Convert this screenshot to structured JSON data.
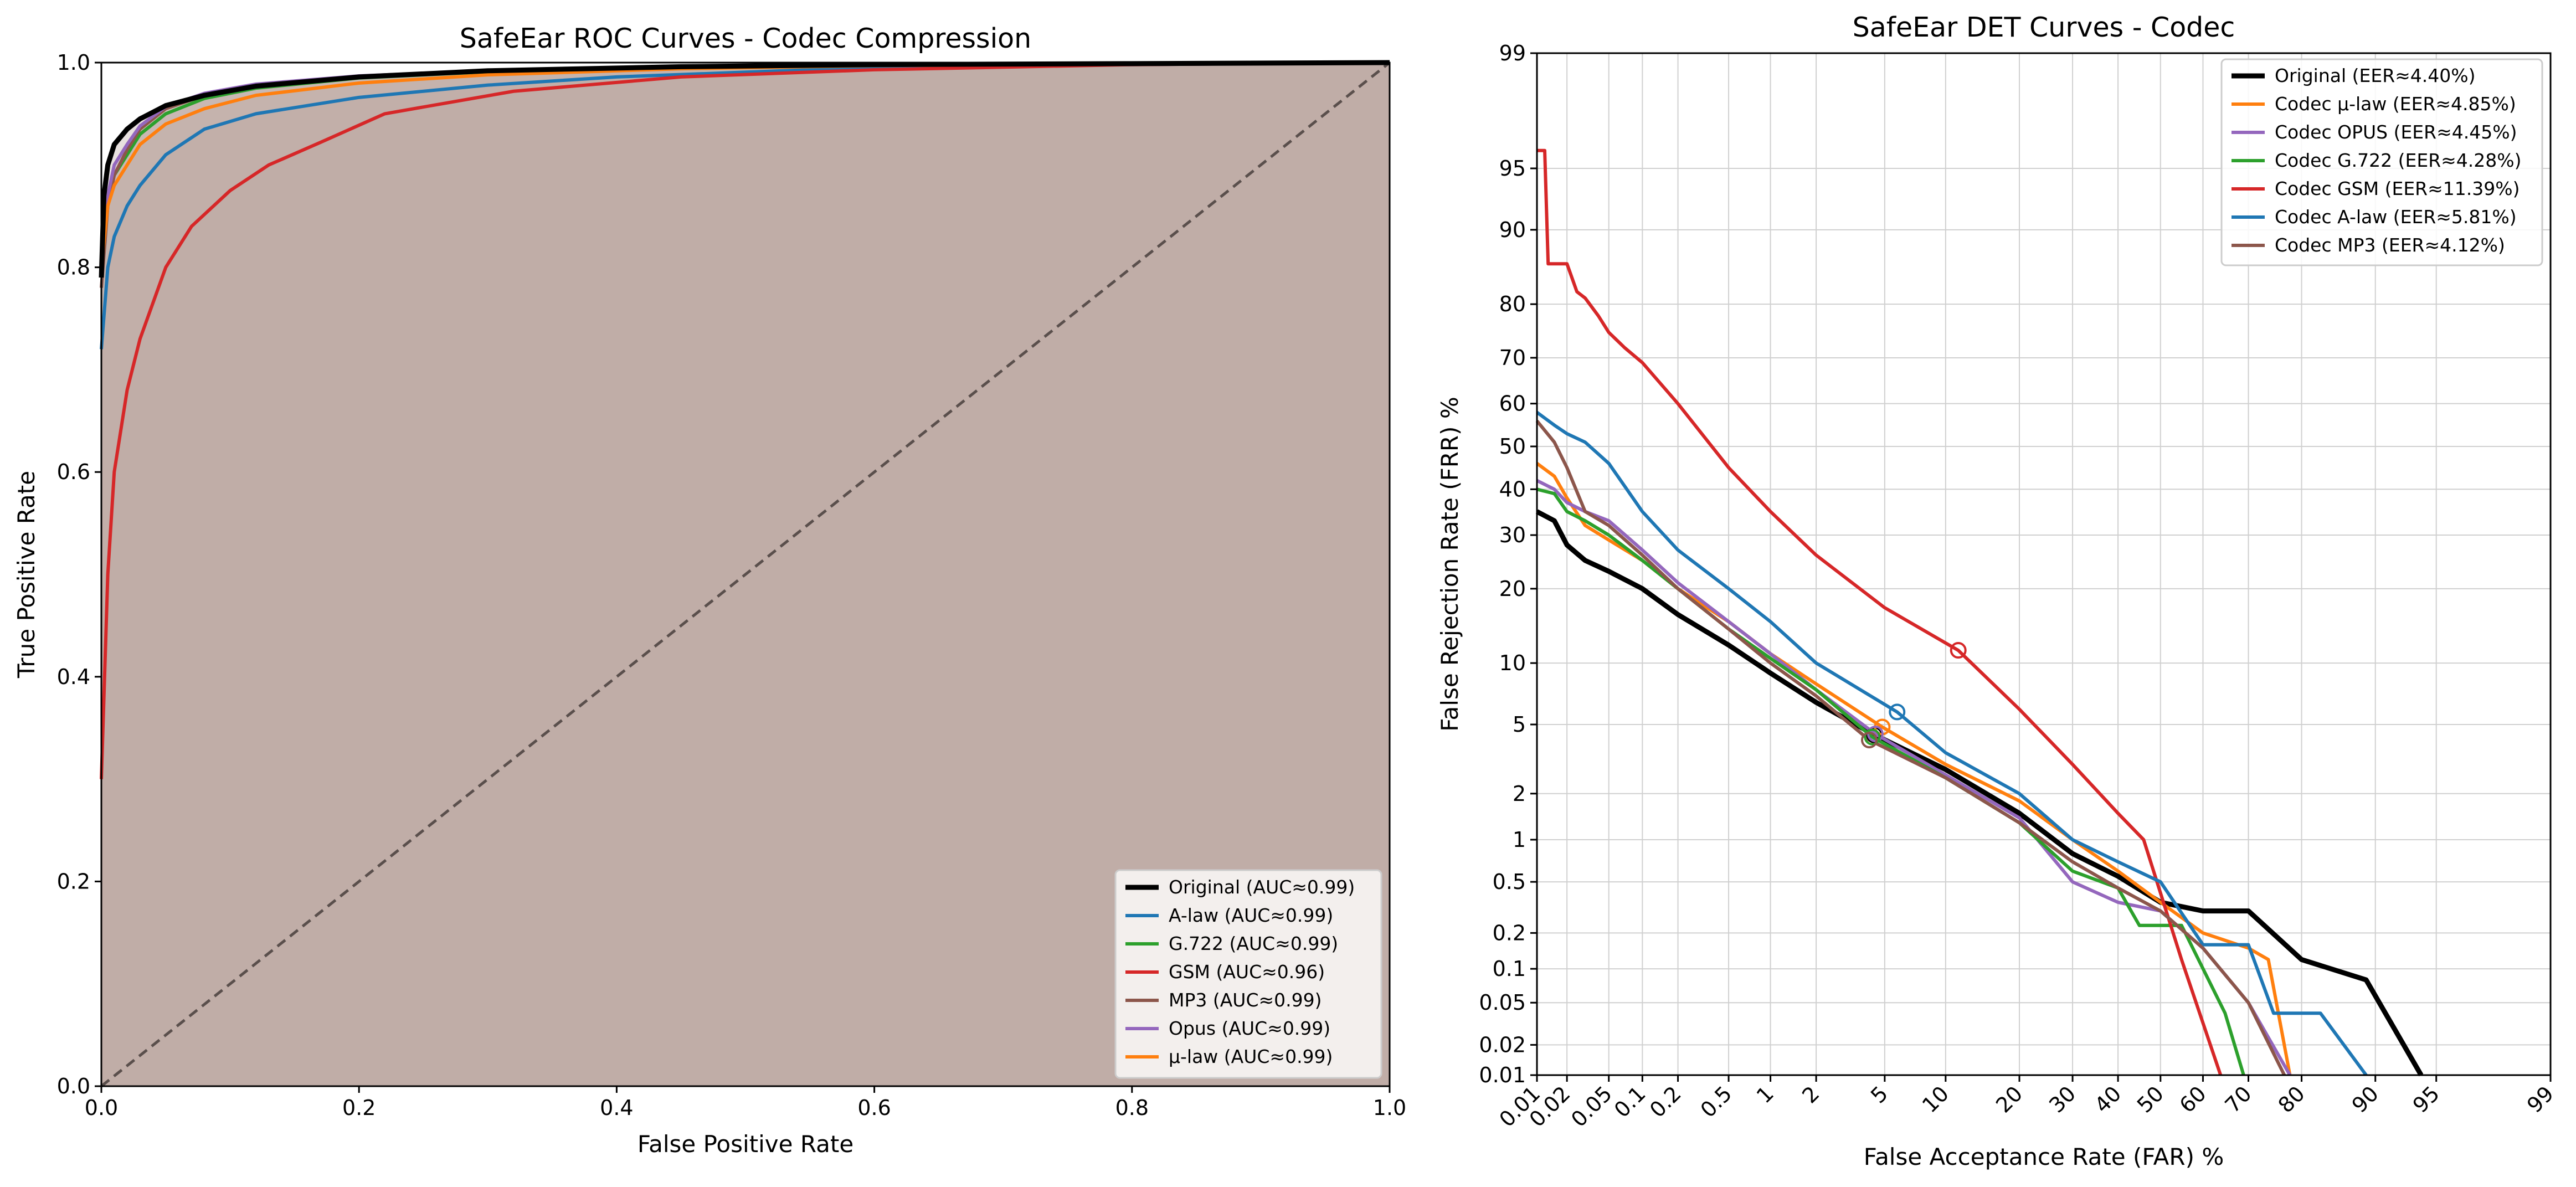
{
  "colors": {
    "original": "#000000",
    "alaw": "#1f77b4",
    "mulaw": "#ff7f0e",
    "g722": "#2ca02c",
    "gsm": "#d62728",
    "mp3": "#8c564b",
    "opus": "#9467bd",
    "fill": "#bcaaa2",
    "grid": "#d0d0d0"
  },
  "chart_data": [
    {
      "type": "line",
      "title": "SafeEar ROC Curves - Codec Compression",
      "xlabel": "False Positive Rate",
      "ylabel": "True Positive Rate",
      "xlim": [
        0,
        1
      ],
      "ylim": [
        0,
        1
      ],
      "grid": false,
      "legend_position": "bottom-right",
      "x_ticks": [
        "0.0",
        "0.2",
        "0.4",
        "0.6",
        "0.8",
        "1.0"
      ],
      "y_ticks": [
        "0.0",
        "0.2",
        "0.4",
        "0.6",
        "0.8",
        "1.0"
      ],
      "chance_line": [
        [
          0,
          0
        ],
        [
          1,
          1
        ]
      ],
      "series": [
        {
          "name": "Original (AUC≈0.99)",
          "key": "original",
          "points": [
            [
              0,
              0.79
            ],
            [
              0.002,
              0.87
            ],
            [
              0.005,
              0.9
            ],
            [
              0.01,
              0.92
            ],
            [
              0.02,
              0.935
            ],
            [
              0.03,
              0.945
            ],
            [
              0.05,
              0.958
            ],
            [
              0.08,
              0.968
            ],
            [
              0.12,
              0.977
            ],
            [
              0.2,
              0.986
            ],
            [
              0.3,
              0.992
            ],
            [
              0.45,
              0.996
            ],
            [
              0.6,
              0.998
            ],
            [
              0.8,
              0.999
            ],
            [
              1,
              1
            ]
          ]
        },
        {
          "name": "A-law (AUC≈0.99)",
          "key": "alaw",
          "points": [
            [
              0,
              0.72
            ],
            [
              0.005,
              0.8
            ],
            [
              0.01,
              0.83
            ],
            [
              0.02,
              0.86
            ],
            [
              0.03,
              0.88
            ],
            [
              0.05,
              0.91
            ],
            [
              0.08,
              0.935
            ],
            [
              0.12,
              0.95
            ],
            [
              0.2,
              0.966
            ],
            [
              0.3,
              0.978
            ],
            [
              0.4,
              0.986
            ],
            [
              0.55,
              0.993
            ],
            [
              0.7,
              0.997
            ],
            [
              0.9,
              0.999
            ],
            [
              1,
              1
            ]
          ]
        },
        {
          "name": "G.722 (AUC≈0.99)",
          "key": "g722",
          "points": [
            [
              0,
              0.8
            ],
            [
              0.005,
              0.87
            ],
            [
              0.01,
              0.89
            ],
            [
              0.02,
              0.91
            ],
            [
              0.03,
              0.93
            ],
            [
              0.05,
              0.95
            ],
            [
              0.08,
              0.965
            ],
            [
              0.12,
              0.975
            ],
            [
              0.2,
              0.985
            ],
            [
              0.3,
              0.991
            ],
            [
              0.45,
              0.996
            ],
            [
              0.6,
              0.998
            ],
            [
              0.8,
              0.999
            ],
            [
              1,
              1
            ]
          ]
        },
        {
          "name": "GSM (AUC≈0.96)",
          "key": "gsm",
          "points": [
            [
              0,
              0.3
            ],
            [
              0.005,
              0.5
            ],
            [
              0.01,
              0.6
            ],
            [
              0.02,
              0.68
            ],
            [
              0.03,
              0.73
            ],
            [
              0.05,
              0.8
            ],
            [
              0.07,
              0.84
            ],
            [
              0.1,
              0.875
            ],
            [
              0.13,
              0.9
            ],
            [
              0.17,
              0.922
            ],
            [
              0.22,
              0.95
            ],
            [
              0.32,
              0.972
            ],
            [
              0.45,
              0.986
            ],
            [
              0.6,
              0.993
            ],
            [
              0.8,
              0.998
            ],
            [
              1,
              1
            ]
          ]
        },
        {
          "name": "MP3 (AUC≈0.99)",
          "key": "mp3",
          "points": [
            [
              0,
              0.78
            ],
            [
              0.005,
              0.86
            ],
            [
              0.01,
              0.89
            ],
            [
              0.02,
              0.915
            ],
            [
              0.03,
              0.935
            ],
            [
              0.05,
              0.955
            ],
            [
              0.08,
              0.968
            ],
            [
              0.12,
              0.977
            ],
            [
              0.2,
              0.986
            ],
            [
              0.3,
              0.992
            ],
            [
              0.45,
              0.996
            ],
            [
              0.6,
              0.998
            ],
            [
              0.8,
              0.999
            ],
            [
              1,
              1
            ]
          ]
        },
        {
          "name": "Opus (AUC≈0.99)",
          "key": "opus",
          "points": [
            [
              0,
              0.8
            ],
            [
              0.005,
              0.87
            ],
            [
              0.01,
              0.9
            ],
            [
              0.02,
              0.92
            ],
            [
              0.03,
              0.938
            ],
            [
              0.05,
              0.957
            ],
            [
              0.08,
              0.97
            ],
            [
              0.12,
              0.979
            ],
            [
              0.2,
              0.987
            ],
            [
              0.3,
              0.992
            ],
            [
              0.45,
              0.996
            ],
            [
              0.6,
              0.998
            ],
            [
              0.8,
              0.999
            ],
            [
              1,
              1
            ]
          ]
        },
        {
          "name": "µ-law (AUC≈0.99)",
          "key": "mulaw",
          "points": [
            [
              0,
              0.8
            ],
            [
              0.005,
              0.86
            ],
            [
              0.01,
              0.88
            ],
            [
              0.02,
              0.9
            ],
            [
              0.03,
              0.92
            ],
            [
              0.05,
              0.94
            ],
            [
              0.08,
              0.955
            ],
            [
              0.12,
              0.968
            ],
            [
              0.2,
              0.98
            ],
            [
              0.3,
              0.988
            ],
            [
              0.45,
              0.994
            ],
            [
              0.6,
              0.997
            ],
            [
              0.8,
              0.999
            ],
            [
              1,
              1
            ]
          ]
        }
      ]
    },
    {
      "type": "line",
      "title": "SafeEar DET Curves - Codec",
      "xlabel": "False Acceptance Rate (FAR) %",
      "ylabel": "False Rejection Rate (FRR) %",
      "xlim": [
        0.01,
        99
      ],
      "ylim": [
        0.01,
        99
      ],
      "scale": "normal-deviate (probit)",
      "grid": true,
      "legend_position": "top-right",
      "x_ticks": [
        "0.01",
        "0.02",
        "0.05",
        "0.1",
        "0.2",
        "0.5",
        "1",
        "2",
        "5",
        "10",
        "20",
        "30",
        "40",
        "50",
        "60",
        "70",
        "80",
        "90",
        "95",
        "99"
      ],
      "y_ticks": [
        "0.01",
        "0.02",
        "0.05",
        "0.1",
        "0.2",
        "0.5",
        "1",
        "2",
        "5",
        "10",
        "20",
        "30",
        "40",
        "50",
        "60",
        "70",
        "80",
        "90",
        "95",
        "99"
      ],
      "series": [
        {
          "name": "Original (EER≈4.40%)",
          "key": "original",
          "eer": 4.4,
          "points": [
            [
              0.01,
              35
            ],
            [
              0.015,
              33
            ],
            [
              0.02,
              28
            ],
            [
              0.03,
              25
            ],
            [
              0.05,
              23
            ],
            [
              0.1,
              20
            ],
            [
              0.2,
              16
            ],
            [
              0.5,
              12
            ],
            [
              1,
              9
            ],
            [
              2,
              6.5
            ],
            [
              4.4,
              4.4
            ],
            [
              10,
              2.8
            ],
            [
              20,
              1.5
            ],
            [
              30,
              0.8
            ],
            [
              40,
              0.55
            ],
            [
              50,
              0.35
            ],
            [
              60,
              0.3
            ],
            [
              70,
              0.3
            ],
            [
              80,
              0.12
            ],
            [
              89,
              0.08
            ],
            [
              94,
              0.01
            ]
          ]
        },
        {
          "name": "Codec µ-law (EER≈4.85%)",
          "key": "mulaw",
          "eer": 4.85,
          "points": [
            [
              0.01,
              46
            ],
            [
              0.015,
              43
            ],
            [
              0.02,
              38
            ],
            [
              0.03,
              32
            ],
            [
              0.05,
              29
            ],
            [
              0.1,
              25
            ],
            [
              0.2,
              20
            ],
            [
              0.5,
              15
            ],
            [
              1,
              11
            ],
            [
              2,
              8
            ],
            [
              4.85,
              4.85
            ],
            [
              10,
              3
            ],
            [
              20,
              1.8
            ],
            [
              30,
              1
            ],
            [
              40,
              0.6
            ],
            [
              50,
              0.35
            ],
            [
              60,
              0.2
            ],
            [
              70,
              0.15
            ],
            [
              74,
              0.12
            ],
            [
              78,
              0.01
            ]
          ]
        },
        {
          "name": "Codec OPUS (EER≈4.45%)",
          "key": "opus",
          "eer": 4.45,
          "points": [
            [
              0.01,
              42
            ],
            [
              0.015,
              40
            ],
            [
              0.02,
              37
            ],
            [
              0.03,
              35
            ],
            [
              0.05,
              33
            ],
            [
              0.1,
              27
            ],
            [
              0.2,
              21
            ],
            [
              0.5,
              15
            ],
            [
              1,
              11
            ],
            [
              2,
              7.5
            ],
            [
              4.45,
              4.45
            ],
            [
              10,
              2.6
            ],
            [
              20,
              1.4
            ],
            [
              30,
              0.5
            ],
            [
              40,
              0.35
            ],
            [
              50,
              0.3
            ],
            [
              60,
              0.15
            ],
            [
              70,
              0.05
            ],
            [
              78,
              0.01
            ]
          ]
        },
        {
          "name": "Codec G.722 (EER≈4.28%)",
          "key": "g722",
          "eer": 4.28,
          "points": [
            [
              0.01,
              40
            ],
            [
              0.015,
              39
            ],
            [
              0.02,
              35
            ],
            [
              0.03,
              33
            ],
            [
              0.05,
              30
            ],
            [
              0.1,
              25
            ],
            [
              0.2,
              20
            ],
            [
              0.5,
              14
            ],
            [
              1,
              10.5
            ],
            [
              2,
              7.5
            ],
            [
              4.28,
              4.28
            ],
            [
              10,
              2.5
            ],
            [
              20,
              1.3
            ],
            [
              30,
              0.6
            ],
            [
              40,
              0.45
            ],
            [
              45,
              0.23
            ],
            [
              55,
              0.23
            ],
            [
              65,
              0.04
            ],
            [
              69,
              0.01
            ]
          ]
        },
        {
          "name": "Codec GSM (EER≈11.39%)",
          "key": "gsm",
          "eer": 11.39,
          "points": [
            [
              0.01,
              96
            ],
            [
              0.012,
              96
            ],
            [
              0.013,
              86
            ],
            [
              0.02,
              86
            ],
            [
              0.025,
              82
            ],
            [
              0.03,
              81
            ],
            [
              0.04,
              78
            ],
            [
              0.05,
              75
            ],
            [
              0.07,
              72
            ],
            [
              0.1,
              69
            ],
            [
              0.2,
              60
            ],
            [
              0.5,
              45
            ],
            [
              1,
              35
            ],
            [
              2,
              26
            ],
            [
              5,
              17
            ],
            [
              11.39,
              11.39
            ],
            [
              20,
              6
            ],
            [
              30,
              3
            ],
            [
              40,
              1.5
            ],
            [
              46,
              1
            ],
            [
              55,
              0.12
            ],
            [
              64,
              0.01
            ]
          ]
        },
        {
          "name": "Codec A-law (EER≈5.81%)",
          "key": "alaw",
          "eer": 5.81,
          "points": [
            [
              0.01,
              58
            ],
            [
              0.015,
              55
            ],
            [
              0.02,
              53
            ],
            [
              0.03,
              51
            ],
            [
              0.05,
              46
            ],
            [
              0.1,
              35
            ],
            [
              0.2,
              27
            ],
            [
              0.5,
              20
            ],
            [
              1,
              15
            ],
            [
              2,
              10
            ],
            [
              5.81,
              5.81
            ],
            [
              10,
              3.5
            ],
            [
              20,
              2
            ],
            [
              30,
              1
            ],
            [
              40,
              0.7
            ],
            [
              50,
              0.5
            ],
            [
              60,
              0.16
            ],
            [
              70,
              0.16
            ],
            [
              75,
              0.04
            ],
            [
              83,
              0.04
            ],
            [
              89,
              0.01
            ]
          ]
        },
        {
          "name": "Codec MP3 (EER≈4.12%)",
          "key": "mp3",
          "eer": 4.12,
          "points": [
            [
              0.01,
              56
            ],
            [
              0.015,
              51
            ],
            [
              0.02,
              45
            ],
            [
              0.03,
              35
            ],
            [
              0.05,
              32
            ],
            [
              0.1,
              26
            ],
            [
              0.2,
              20
            ],
            [
              0.5,
              14
            ],
            [
              1,
              10
            ],
            [
              2,
              7
            ],
            [
              4.12,
              4.12
            ],
            [
              10,
              2.5
            ],
            [
              20,
              1.3
            ],
            [
              30,
              0.7
            ],
            [
              40,
              0.45
            ],
            [
              50,
              0.3
            ],
            [
              60,
              0.15
            ],
            [
              70,
              0.05
            ],
            [
              77,
              0.01
            ]
          ]
        }
      ]
    }
  ]
}
